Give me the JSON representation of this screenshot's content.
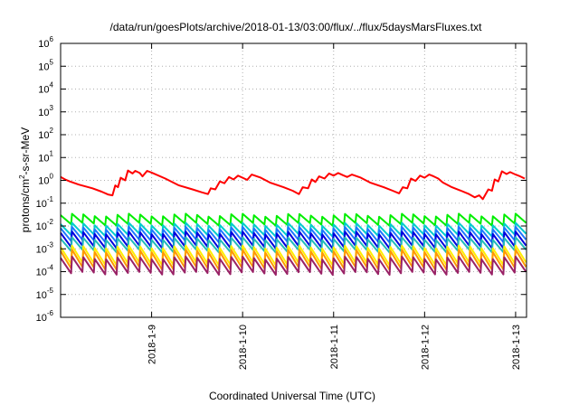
{
  "chart_data": {
    "type": "line",
    "title": "/data/run/goesPlots/archive/2018-01-13/03:00/flux/../flux/5daysMarsFluxes.txt",
    "xlabel": "Coordinated Universal Time (UTC)",
    "ylabel": {
      "base": "protons/cm",
      "sup": "2",
      "rest": "-s-sr-MeV"
    },
    "yscale": "log",
    "ylim_exponents": [
      -6,
      6
    ],
    "y_tick_labels": [
      {
        "base": "10",
        "exp": "-6"
      },
      {
        "base": "10",
        "exp": "-5"
      },
      {
        "base": "10",
        "exp": "-4"
      },
      {
        "base": "10",
        "exp": "-3"
      },
      {
        "base": "10",
        "exp": "-2"
      },
      {
        "base": "10",
        "exp": "-1"
      },
      {
        "base": "10",
        "exp": "0"
      },
      {
        "base": "10",
        "exp": "1"
      },
      {
        "base": "10",
        "exp": "2"
      },
      {
        "base": "10",
        "exp": "3"
      },
      {
        "base": "10",
        "exp": "4"
      },
      {
        "base": "10",
        "exp": "5"
      },
      {
        "base": "10",
        "exp": "6"
      }
    ],
    "x_tick_labels": [
      "2018-1-9",
      "2018-1-10",
      "2018-1-11",
      "2018-1-12",
      "2018-1-13"
    ],
    "x_tick_days": [
      1,
      2,
      3,
      4,
      5
    ],
    "xlim_days": [
      0,
      5.12
    ],
    "grid": true,
    "legend": "none",
    "series": [
      {
        "color": "#ff0000",
        "sawtooth": false,
        "points": [
          [
            0.0,
            1.4
          ],
          [
            0.05,
            1.1
          ],
          [
            0.1,
            0.9
          ],
          [
            0.2,
            0.65
          ],
          [
            0.35,
            0.45
          ],
          [
            0.45,
            0.32
          ],
          [
            0.52,
            0.24
          ],
          [
            0.57,
            0.22
          ],
          [
            0.6,
            0.6
          ],
          [
            0.63,
            0.5
          ],
          [
            0.66,
            1.3
          ],
          [
            0.71,
            1.0
          ],
          [
            0.74,
            2.7
          ],
          [
            0.79,
            2.0
          ],
          [
            0.82,
            2.6
          ],
          [
            0.87,
            2.1
          ],
          [
            0.9,
            1.5
          ],
          [
            0.95,
            2.6
          ],
          [
            1.0,
            2.2
          ],
          [
            1.15,
            1.2
          ],
          [
            1.3,
            0.6
          ],
          [
            1.45,
            0.4
          ],
          [
            1.55,
            0.3
          ],
          [
            1.62,
            0.25
          ],
          [
            1.65,
            0.45
          ],
          [
            1.7,
            0.4
          ],
          [
            1.75,
            0.9
          ],
          [
            1.8,
            0.75
          ],
          [
            1.85,
            1.4
          ],
          [
            1.9,
            1.1
          ],
          [
            1.95,
            1.6
          ],
          [
            2.0,
            1.3
          ],
          [
            2.05,
            1.05
          ],
          [
            2.1,
            1.8
          ],
          [
            2.2,
            1.3
          ],
          [
            2.3,
            0.8
          ],
          [
            2.45,
            0.5
          ],
          [
            2.55,
            0.35
          ],
          [
            2.62,
            0.25
          ],
          [
            2.66,
            0.5
          ],
          [
            2.72,
            0.45
          ],
          [
            2.76,
            1.1
          ],
          [
            2.8,
            0.85
          ],
          [
            2.84,
            1.5
          ],
          [
            2.9,
            1.2
          ],
          [
            2.95,
            2.0
          ],
          [
            3.0,
            1.6
          ],
          [
            3.05,
            2.1
          ],
          [
            3.1,
            1.7
          ],
          [
            3.15,
            1.4
          ],
          [
            3.2,
            1.8
          ],
          [
            3.3,
            1.3
          ],
          [
            3.4,
            0.8
          ],
          [
            3.55,
            0.5
          ],
          [
            3.65,
            0.35
          ],
          [
            3.72,
            0.27
          ],
          [
            3.76,
            0.5
          ],
          [
            3.81,
            0.45
          ],
          [
            3.85,
            1.2
          ],
          [
            3.9,
            0.95
          ],
          [
            3.95,
            1.6
          ],
          [
            4.0,
            1.3
          ],
          [
            4.05,
            1.8
          ],
          [
            4.1,
            1.5
          ],
          [
            4.15,
            1.2
          ],
          [
            4.2,
            0.8
          ],
          [
            4.3,
            0.5
          ],
          [
            4.4,
            0.35
          ],
          [
            4.48,
            0.26
          ],
          [
            4.55,
            0.18
          ],
          [
            4.6,
            0.22
          ],
          [
            4.64,
            0.15
          ],
          [
            4.7,
            0.4
          ],
          [
            4.74,
            0.35
          ],
          [
            4.77,
            1.1
          ],
          [
            4.81,
            0.9
          ],
          [
            4.85,
            2.5
          ],
          [
            4.9,
            1.9
          ],
          [
            4.94,
            2.3
          ],
          [
            5.0,
            1.8
          ],
          [
            5.05,
            1.5
          ],
          [
            5.1,
            1.2
          ]
        ]
      },
      {
        "color": "#00ee00",
        "sawtooth": true,
        "high": 0.03,
        "low": 0.012
      },
      {
        "color": "#00cccc",
        "sawtooth": true,
        "high": 0.012,
        "low": 0.004
      },
      {
        "color": "#1e78ff",
        "sawtooth": true,
        "high": 0.008,
        "low": 0.0022
      },
      {
        "color": "#0000dd",
        "sawtooth": true,
        "high": 0.005,
        "low": 0.0012
      },
      {
        "color": "#22bbbb",
        "sawtooth": true,
        "high": 0.0028,
        "low": 0.0008
      },
      {
        "color": "#ffee00",
        "sawtooth": true,
        "high": 0.0012,
        "low": 0.00022
      },
      {
        "color": "#ff9900",
        "sawtooth": true,
        "high": 0.0008,
        "low": 0.00014
      },
      {
        "color": "#992266",
        "sawtooth": true,
        "high": 0.0004,
        "low": 8.5e-05
      }
    ],
    "sawtooth_period_days": 0.125
  }
}
